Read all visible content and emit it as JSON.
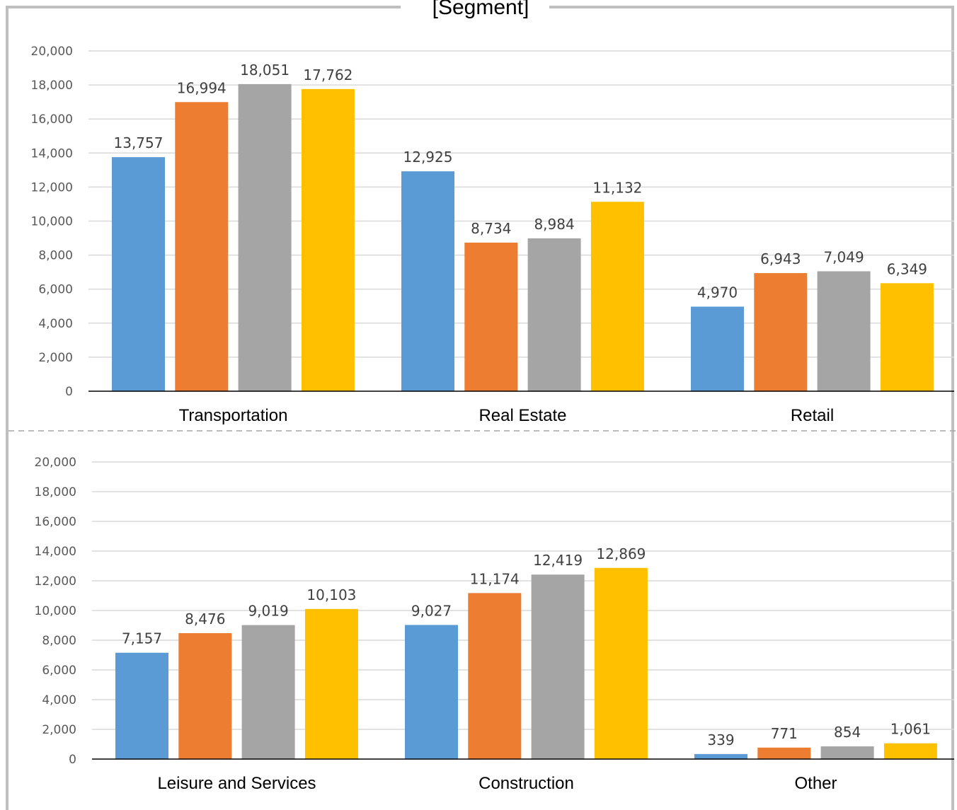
{
  "title": "[Segment]",
  "colors": {
    "frame": "#bfbfbf",
    "gridline": "#d9d9d9",
    "axis": "#000000",
    "divider": "#a6a6a6",
    "series": [
      "#5b9bd5",
      "#ed7d31",
      "#a5a5a5",
      "#ffc000"
    ]
  },
  "chart_data": [
    {
      "type": "bar",
      "ylim": [
        0,
        20000
      ],
      "yticks": [
        "0",
        "2,000",
        "4,000",
        "6,000",
        "8,000",
        "10,000",
        "12,000",
        "14,000",
        "16,000",
        "18,000",
        "20,000"
      ],
      "grid": true,
      "categories": [
        "Transportation",
        "Real Estate",
        "Retail"
      ],
      "values": [
        [
          13757,
          16994,
          18051,
          17762
        ],
        [
          12925,
          8734,
          8984,
          11132
        ],
        [
          4970,
          6943,
          7049,
          6349
        ]
      ],
      "labels": [
        [
          "13,757",
          "16,994",
          "18,051",
          "17,762"
        ],
        [
          "12,925",
          "8,734",
          "8,984",
          "11,132"
        ],
        [
          "4,970",
          "6,943",
          "7,049",
          "6,349"
        ]
      ]
    },
    {
      "type": "bar",
      "ylim": [
        0,
        20000
      ],
      "yticks": [
        "0",
        "2,000",
        "4,000",
        "6,000",
        "8,000",
        "10,000",
        "12,000",
        "14,000",
        "16,000",
        "18,000",
        "20,000"
      ],
      "grid": true,
      "categories": [
        "Leisure and Services",
        "Construction",
        "Other"
      ],
      "values": [
        [
          7157,
          8476,
          9019,
          10103
        ],
        [
          9027,
          11174,
          12419,
          12869
        ],
        [
          339,
          771,
          854,
          1061
        ]
      ],
      "labels": [
        [
          "7,157",
          "8,476",
          "9,019",
          "10,103"
        ],
        [
          "9,027",
          "11,174",
          "12,419",
          "12,869"
        ],
        [
          "339",
          "771",
          "854",
          "1,061"
        ]
      ]
    }
  ]
}
